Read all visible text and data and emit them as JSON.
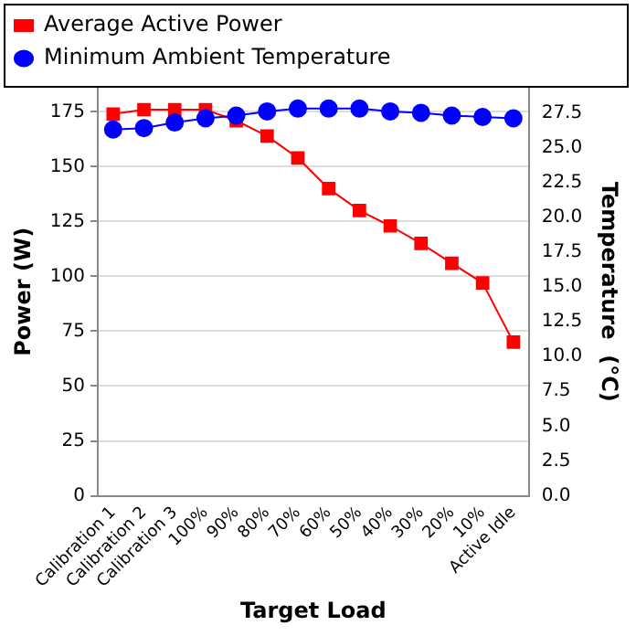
{
  "chart_data": {
    "type": "line",
    "xlabel": "Target Load",
    "ylabel": "Power (W)",
    "y2label": "Temperature  (°C)",
    "categories": [
      "Calibration 1",
      "Calibration 2",
      "Calibration 3",
      "100%",
      "90%",
      "80%",
      "70%",
      "60%",
      "50%",
      "40%",
      "30%",
      "20%",
      "10%",
      "Active Idle"
    ],
    "series": [
      {
        "name": "Average Active Power",
        "color": "#ff0000",
        "marker": "square",
        "values": [
          174,
          176,
          176,
          176,
          171,
          164,
          154,
          140,
          130,
          123,
          115,
          106,
          97,
          70
        ]
      },
      {
        "name": "Minimum Ambient Temperature",
        "color": "#0000ff",
        "marker": "circle",
        "axis": "y2",
        "values": [
          26.3,
          26.4,
          26.8,
          27.1,
          27.3,
          27.6,
          27.8,
          27.8,
          27.8,
          27.6,
          27.5,
          27.3,
          27.2,
          27.1
        ]
      }
    ],
    "ylim": [
      0,
      186
    ],
    "yticks": [
      0,
      25,
      50,
      75,
      100,
      125,
      150,
      175
    ],
    "y2lim": [
      0,
      29.3
    ],
    "y2ticks": [
      {
        "value": 0,
        "label": "0.0"
      },
      {
        "value": 2.5,
        "label": "2.5"
      },
      {
        "value": 5,
        "label": "5.0"
      },
      {
        "value": 7.5,
        "label": "7.5"
      },
      {
        "value": 10,
        "label": "10.0"
      },
      {
        "value": 12.5,
        "label": "12.5"
      },
      {
        "value": 15,
        "label": "15.0"
      },
      {
        "value": 17.5,
        "label": "17.5"
      },
      {
        "value": 20,
        "label": "20.0"
      },
      {
        "value": 22.5,
        "label": "22.5"
      },
      {
        "value": 25,
        "label": "25.0"
      },
      {
        "value": 27.5,
        "label": "27.5"
      }
    ],
    "grid": "y",
    "legend": "top"
  }
}
